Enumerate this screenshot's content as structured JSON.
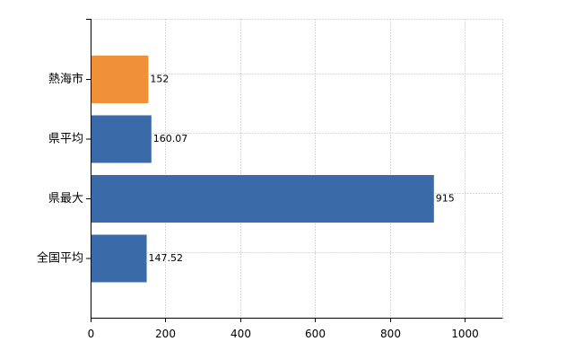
{
  "chart_data": {
    "type": "bar",
    "orientation": "horizontal",
    "categories": [
      "熱海市",
      "県平均",
      "県最大",
      "全国平均"
    ],
    "values": [
      152,
      160.07,
      915,
      147.52
    ],
    "value_labels": [
      "152",
      "160.07",
      "915",
      "147.52"
    ],
    "bar_colors": [
      "#f0913a",
      "#3a6ba8",
      "#3a6ba8",
      "#3a6ba8"
    ],
    "xlim": [
      0,
      1100
    ],
    "x_ticks": [
      0,
      200,
      400,
      600,
      800,
      1000
    ],
    "x_tick_labels": [
      "0",
      "200",
      "400",
      "600",
      "800",
      "1000"
    ],
    "grid": true,
    "legend": "none"
  },
  "colors": {
    "highlight": "#f0913a",
    "primary": "#3a6ba8",
    "grid": "#d9d9d9",
    "axis": "#000000"
  }
}
